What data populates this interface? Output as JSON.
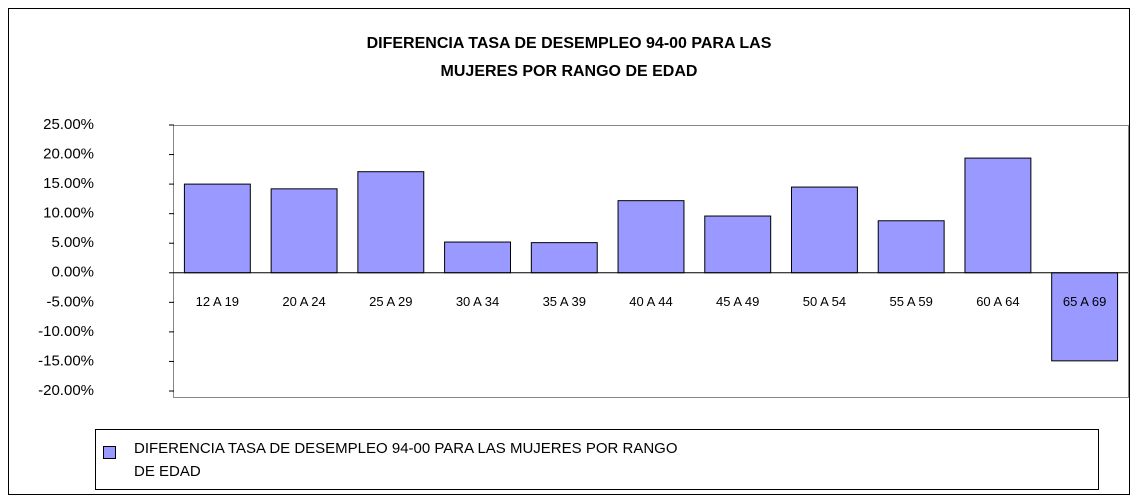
{
  "chart_data": {
    "type": "bar",
    "title": "DIFERENCIA TASA DE DESEMPLEO 94-00 PARA LAS MUJERES POR RANGO DE EDAD",
    "categories": [
      "12 A 19",
      "20 A 24",
      "25 A 29",
      "30 A 34",
      "35 A 39",
      "40 A 44",
      "45 A 49",
      "50 A 54",
      "55 A 59",
      "60 A 64",
      "65 A 69"
    ],
    "series": [
      {
        "name": "DIFERENCIA TASA DE DESEMPLEO 94-00 PARA LAS MUJERES POR RANGO DE EDAD",
        "color": "#9999ff",
        "values": [
          15.0,
          14.2,
          17.1,
          5.2,
          5.1,
          12.2,
          9.6,
          14.5,
          8.8,
          19.4,
          -14.9
        ]
      }
    ],
    "ylim": [
      -20,
      25
    ],
    "yticks": [
      {
        "value": 25,
        "label": "25.00%"
      },
      {
        "value": 20,
        "label": "20.00%"
      },
      {
        "value": 15,
        "label": "15.00%"
      },
      {
        "value": 10,
        "label": "10.00%"
      },
      {
        "value": 5,
        "label": "5.00%"
      },
      {
        "value": 0,
        "label": "0.00%"
      },
      {
        "value": -5,
        "label": "-5.00%"
      },
      {
        "value": -10,
        "label": "-10.00%"
      },
      {
        "value": -15,
        "label": "-15.00%"
      },
      {
        "value": -20,
        "label": "-20.00%"
      }
    ],
    "legend": "bottom"
  }
}
